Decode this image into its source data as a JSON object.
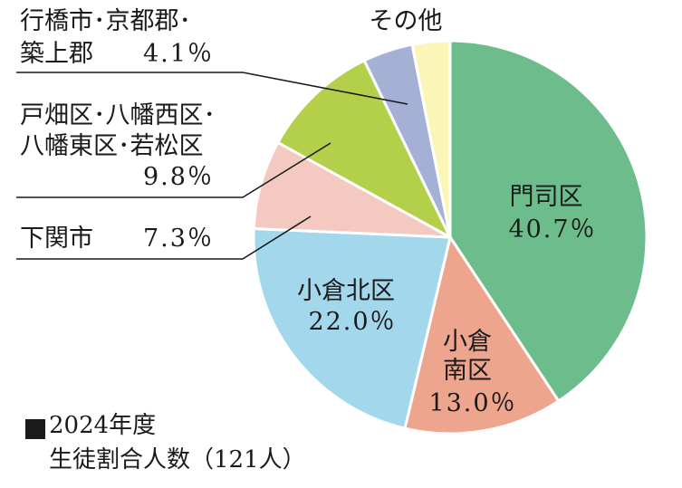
{
  "chart_data": {
    "type": "pie",
    "slices": [
      {
        "label_lines": [
          "門司区"
        ],
        "value_text": "40.7％",
        "value": 40.7,
        "color": "#6dbd8c"
      },
      {
        "label_lines": [
          "小倉",
          "南区"
        ],
        "value_text": "13.0％",
        "value": 13.0,
        "color": "#eda58d"
      },
      {
        "label_lines": [
          "小倉北区"
        ],
        "value_text": "22.0％",
        "value": 22.0,
        "color": "#a3d7ec"
      },
      {
        "label_lines": [
          "下関市"
        ],
        "value_text": "7.3％",
        "value": 7.3,
        "color": "#f3c9c0"
      },
      {
        "label_lines": [
          "戸畑区･八幡西区･",
          "八幡東区･若松区"
        ],
        "value_text": "9.8％",
        "value": 9.8,
        "color": "#b4cf4a"
      },
      {
        "label_lines": [
          "行橋市･京都郡･",
          "築上郡"
        ],
        "value_text": "4.1％",
        "value": 4.1,
        "color": "#a5b1d4"
      },
      {
        "label_lines": [
          "その他"
        ],
        "value_text": "",
        "value": 3.1,
        "color": "#fbf5b8"
      }
    ],
    "legend": {
      "line1": "2024年度",
      "line2": "生徒割合人数（121人）"
    }
  }
}
